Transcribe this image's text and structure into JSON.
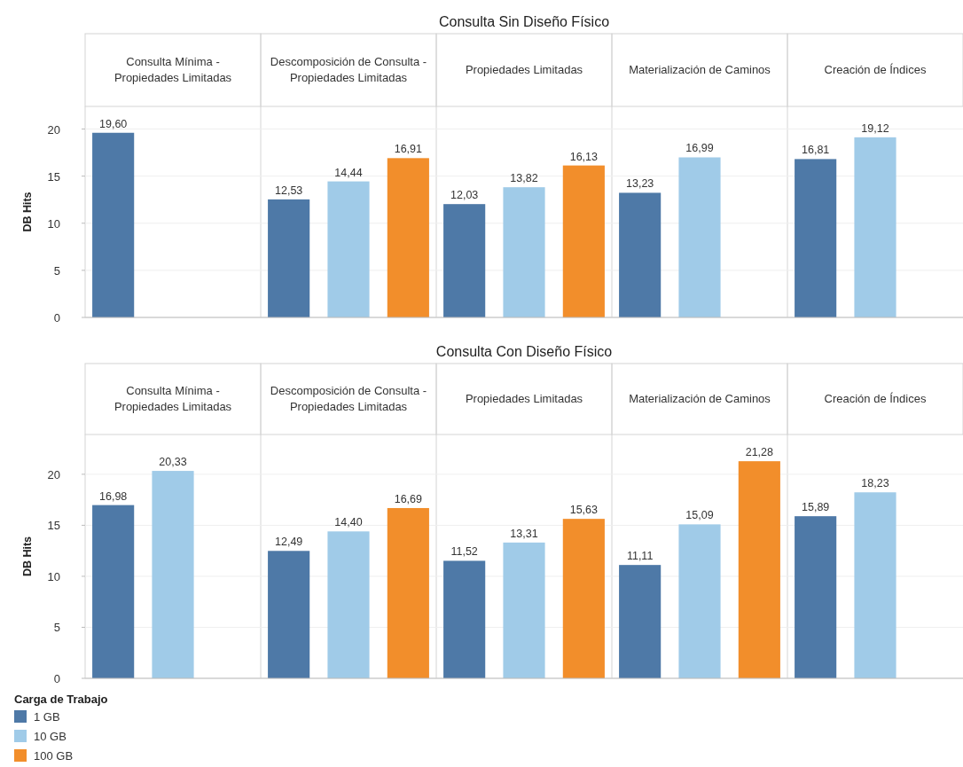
{
  "chart_data": [
    {
      "type": "bar",
      "title": "Consulta Sin Diseño Físico",
      "ylabel": "DB Hits",
      "categories": [
        "Consulta Mínima - Propiedades Limitadas",
        "Descomposición de Consulta - Propiedades Limitadas",
        "Propiedades Limitadas",
        "Materialización de Caminos",
        "Creación de Índices"
      ],
      "series": [
        {
          "color": "#4e79a7",
          "values": [
            19.6,
            12.53,
            12.03,
            13.23,
            16.81
          ],
          "value_labels": [
            "19,60",
            "12,53",
            "12,03",
            "13,23",
            "16,81"
          ]
        },
        {
          "color": "#a0cbe8",
          "values": [
            null,
            14.44,
            13.82,
            16.99,
            19.12
          ],
          "value_labels": [
            null,
            "14,44",
            "13,82",
            "16,99",
            "19,12"
          ]
        },
        {
          "color": "#f28e2b",
          "values": [
            null,
            16.91,
            16.13,
            null,
            null
          ],
          "value_labels": [
            null,
            "16,91",
            "16,13",
            null,
            null
          ]
        }
      ],
      "ylim": [
        0,
        22.4
      ],
      "yticks": [
        0,
        5,
        10,
        15,
        20
      ],
      "grid": "y",
      "legend": false
    },
    {
      "type": "bar",
      "title": "Consulta Con Diseño Físico",
      "ylabel": "DB Hits",
      "categories": [
        "Consulta Mínima - Propiedades Limitadas",
        "Descomposición de Consulta - Propiedades Limitadas",
        "Propiedades Limitadas",
        "Materialización de Caminos",
        "Creación de Índices"
      ],
      "series": [
        {
          "name": "1 GB",
          "color": "#4e79a7",
          "values": [
            16.98,
            12.49,
            11.52,
            11.11,
            15.89
          ],
          "value_labels": [
            "16,98",
            "12,49",
            "11,52",
            "11,11",
            "15,89"
          ]
        },
        {
          "name": "10 GB",
          "color": "#a0cbe8",
          "values": [
            20.33,
            14.4,
            13.31,
            15.09,
            18.23
          ],
          "value_labels": [
            "20,33",
            "14,40",
            "13,31",
            "15,09",
            "18,23"
          ]
        },
        {
          "name": "100 GB",
          "color": "#f28e2b",
          "values": [
            null,
            16.69,
            15.63,
            21.28,
            null
          ],
          "value_labels": [
            null,
            "16,69",
            "15,63",
            "21,28",
            null
          ]
        }
      ],
      "ylim": [
        0,
        23.9
      ],
      "yticks": [
        0,
        5,
        10,
        15,
        20
      ],
      "grid": "y",
      "legend": "bottom left",
      "legend_title": "Carga de Trabajo"
    }
  ]
}
